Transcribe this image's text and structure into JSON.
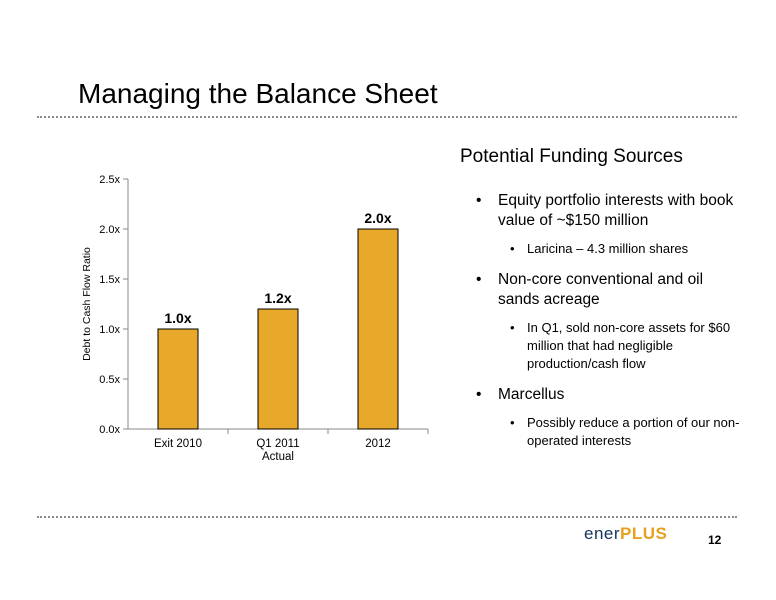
{
  "slide": {
    "title": "Managing the Balance Sheet",
    "page_number": "12"
  },
  "funding": {
    "heading": "Potential Funding Sources",
    "bullets": [
      {
        "text": "Equity portfolio interests with book value of ~$150 million",
        "sub": [
          "Laricina – 4.3 million shares"
        ]
      },
      {
        "text": "Non-core conventional and oil sands acreage",
        "sub": [
          "In Q1, sold non-core assets for $60 million that had negligible production/cash flow"
        ]
      },
      {
        "text": "Marcellus",
        "sub": [
          "Possibly reduce a portion of our non-operated interests"
        ]
      }
    ]
  },
  "logo": {
    "part1": "ener",
    "part2": "PLUS"
  },
  "chart_data": {
    "type": "bar",
    "categories": [
      "Exit 2010",
      "Q1 2011\nActual",
      "2012"
    ],
    "values": [
      1.0,
      1.2,
      2.0
    ],
    "data_labels": [
      "1.0x",
      "1.2x",
      "2.0x"
    ],
    "ylabel": "Debt to Cash Flow Ratio",
    "ylim": [
      0,
      2.5
    ],
    "yticks": [
      "0.0x",
      "0.5x",
      "1.0x",
      "1.5x",
      "2.0x",
      "2.5x"
    ],
    "bar_color": "#E8A82A",
    "grid": false
  }
}
